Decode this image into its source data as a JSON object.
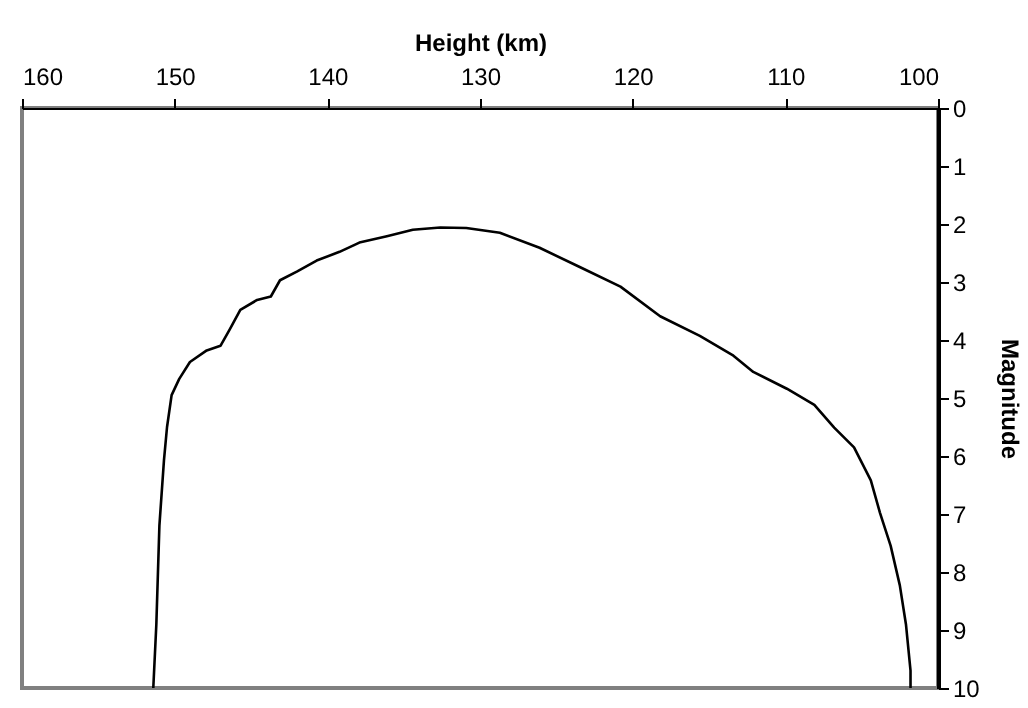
{
  "chart_data": {
    "type": "line",
    "xlabel": "Height (km)",
    "ylabel": "Magnitude",
    "xlim": [
      160,
      100
    ],
    "xticks": [
      160,
      150,
      140,
      130,
      120,
      110,
      100
    ],
    "ylim": [
      10,
      0
    ],
    "yticks": [
      0,
      1,
      2,
      3,
      4,
      5,
      6,
      7,
      8,
      9,
      10
    ],
    "x": [
      151.4,
      151.2,
      151.0,
      150.7,
      150.5,
      150.2,
      149.7,
      149.0,
      147.9,
      147.0,
      146.4,
      145.7,
      144.6,
      143.7,
      143.1,
      142.0,
      140.7,
      139.2,
      137.9,
      136.1,
      134.4,
      132.6,
      130.9,
      128.7,
      126.1,
      123.4,
      120.8,
      118.2,
      115.6,
      113.4,
      112.1,
      109.9,
      108.1,
      106.8,
      105.5,
      104.4,
      103.8,
      103.1,
      102.5,
      102.1,
      101.8,
      101.8
    ],
    "series": [
      {
        "color": "#000000",
        "values": [
          10,
          8.9,
          7.2,
          6.07,
          5.5,
          4.95,
          4.67,
          4.38,
          4.18,
          4.1,
          3.82,
          3.48,
          3.31,
          3.25,
          2.97,
          2.82,
          2.63,
          2.48,
          2.32,
          2.21,
          2.1,
          2.06,
          2.07,
          2.15,
          2.41,
          2.75,
          3.08,
          3.59,
          3.93,
          4.27,
          4.55,
          4.84,
          5.12,
          5.51,
          5.85,
          6.42,
          6.98,
          7.55,
          8.23,
          8.9,
          9.7,
          10
        ]
      }
    ],
    "grid": false,
    "marker": "none",
    "line_style": "solid"
  }
}
